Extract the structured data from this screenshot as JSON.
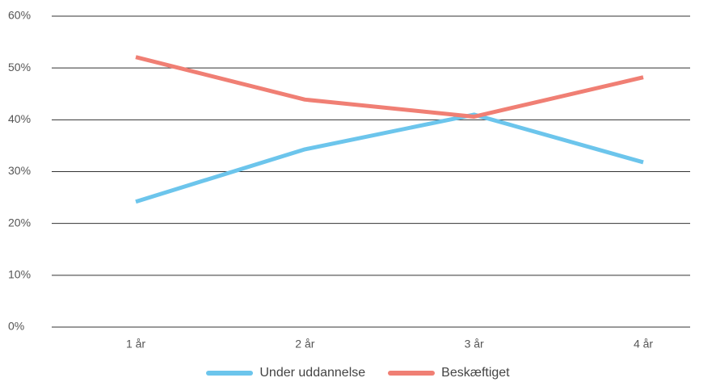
{
  "chart_data": {
    "type": "line",
    "categories": [
      "1 år",
      "2 år",
      "3 år",
      "4 år"
    ],
    "series": [
      {
        "name": "Under uddannelse",
        "values": [
          24.2,
          34.3,
          41.0,
          31.8
        ],
        "color": "#6cc5ec"
      },
      {
        "name": "Beskæftiget",
        "values": [
          52.1,
          43.9,
          40.6,
          48.2
        ],
        "color": "#f07f74"
      }
    ],
    "y_ticks": [
      "0%",
      "10%",
      "20%",
      "30%",
      "40%",
      "50%",
      "60%"
    ],
    "ylim": [
      0,
      60
    ],
    "y_step": 10,
    "grid": true,
    "legend_position": "bottom"
  }
}
